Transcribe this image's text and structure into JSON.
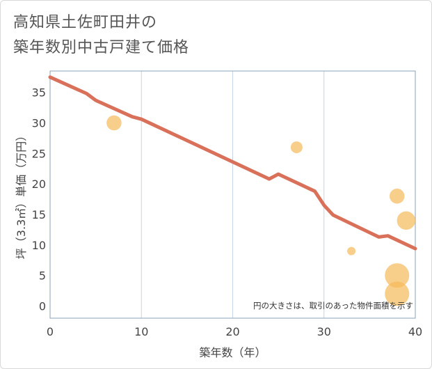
{
  "title_line1": "高知県土佐町田井の",
  "title_line2": "築年数別中古戸建て価格",
  "colors": {
    "line": "#d9705a",
    "bubble": "#f5b95a",
    "grid": "#c8d4e3",
    "plot_border": "#8aa0b8"
  },
  "chart_data": {
    "type": "scatter",
    "xlabel": "築年数（年）",
    "ylabel": "坪（3.3㎡）単価（万円）",
    "xlim": [
      0,
      40
    ],
    "ylim": [
      -2,
      38.5
    ],
    "xticks": [
      0,
      10,
      20,
      30,
      40
    ],
    "yticks": [
      0,
      5,
      10,
      15,
      20,
      25,
      30,
      35
    ],
    "note": "円の大きさは、取引のあった物件面積を示す",
    "trend_line": {
      "name": "trend",
      "x": [
        0,
        4,
        5,
        9,
        10,
        24,
        25,
        29,
        30,
        31,
        36,
        37,
        40
      ],
      "y": [
        37.5,
        34.8,
        33.7,
        31.0,
        30.6,
        20.8,
        21.6,
        18.8,
        16.5,
        14.9,
        11.3,
        11.5,
        9.4
      ]
    },
    "points": [
      {
        "x": 7,
        "y": 30,
        "size": 2
      },
      {
        "x": 27,
        "y": 26,
        "size": 1
      },
      {
        "x": 33,
        "y": 9,
        "size": 0.3
      },
      {
        "x": 38,
        "y": 18,
        "size": 2
      },
      {
        "x": 39,
        "y": 14,
        "size": 3.5
      },
      {
        "x": 38,
        "y": 5,
        "size": 7
      },
      {
        "x": 38,
        "y": 2,
        "size": 7
      }
    ]
  }
}
